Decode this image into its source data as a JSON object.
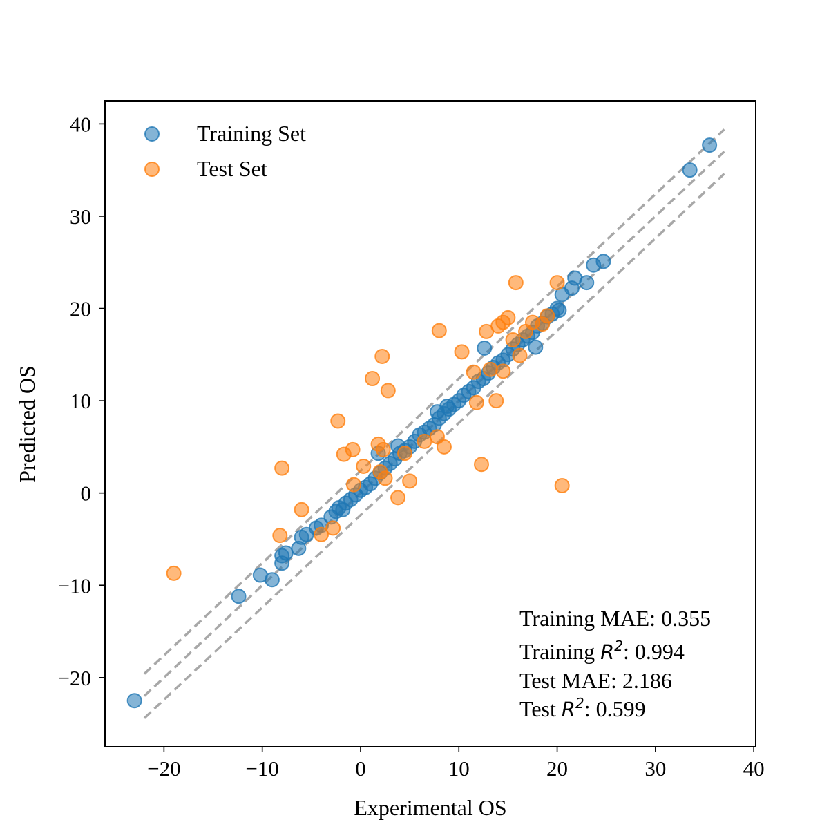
{
  "chart_data": {
    "type": "scatter",
    "xlabel": "Experimental OS",
    "ylabel": "Predicted OS",
    "xlim": [
      -26,
      40.2
    ],
    "ylim": [
      -27.5,
      42.5
    ],
    "xticks": [
      -20,
      -10,
      0,
      10,
      20,
      30,
      40
    ],
    "yticks": [
      -20,
      -10,
      0,
      10,
      20,
      30,
      40
    ],
    "xtick_labels": [
      "−20",
      "−10",
      "0",
      "10",
      "20",
      "30",
      "40"
    ],
    "ytick_labels": [
      "−20",
      "−10",
      "0",
      "10",
      "20",
      "30",
      "40"
    ],
    "grid": false,
    "legend_placement": "top-left",
    "reference_lines": {
      "x_range": [
        -22,
        37
      ],
      "offsets": [
        2.4,
        0,
        -2.4
      ],
      "color": "#999999",
      "style": "dashed"
    },
    "series": [
      {
        "name": "Training Set",
        "color": "#1f77b4",
        "points": [
          [
            -23,
            -22.5
          ],
          [
            -12.4,
            -11.2
          ],
          [
            -10.2,
            -8.9
          ],
          [
            -9,
            -9.4
          ],
          [
            -8,
            -7.6
          ],
          [
            -8,
            -6.8
          ],
          [
            -7.6,
            -6.5
          ],
          [
            -6.3,
            -6
          ],
          [
            -6,
            -4.8
          ],
          [
            -5.5,
            -4.5
          ],
          [
            -4.5,
            -3.8
          ],
          [
            -4,
            -3.5
          ],
          [
            -3,
            -2.6
          ],
          [
            -2.5,
            -2
          ],
          [
            -2.2,
            -1.6
          ],
          [
            -1.8,
            -1.8
          ],
          [
            -1.5,
            -1.1
          ],
          [
            -1,
            -0.7
          ],
          [
            -0.5,
            -0.2
          ],
          [
            0,
            0.3
          ],
          [
            0.5,
            0.6
          ],
          [
            1,
            1
          ],
          [
            1.5,
            1.6
          ],
          [
            1.8,
            4.3
          ],
          [
            2,
            2.2
          ],
          [
            2.5,
            2.7
          ],
          [
            3,
            3.2
          ],
          [
            3.5,
            3.7
          ],
          [
            3.8,
            5.1
          ],
          [
            4,
            4.3
          ],
          [
            4.5,
            4.6
          ],
          [
            5,
            5
          ],
          [
            5.5,
            5.6
          ],
          [
            6,
            6.3
          ],
          [
            6.5,
            6.6
          ],
          [
            7,
            7
          ],
          [
            7.5,
            7.4
          ],
          [
            7.8,
            8.8
          ],
          [
            8,
            8.1
          ],
          [
            8.5,
            8.6
          ],
          [
            8.8,
            9.4
          ],
          [
            9,
            9.1
          ],
          [
            9.5,
            9.6
          ],
          [
            10,
            10
          ],
          [
            10.5,
            10.6
          ],
          [
            11,
            11
          ],
          [
            11.5,
            11.4
          ],
          [
            12,
            12.1
          ],
          [
            12.5,
            12.4
          ],
          [
            12.6,
            15.7
          ],
          [
            13,
            13
          ],
          [
            13.5,
            13.6
          ],
          [
            14,
            14.1
          ],
          [
            14.5,
            14.4
          ],
          [
            15,
            15
          ],
          [
            15.5,
            15.6
          ],
          [
            16,
            16.1
          ],
          [
            16.5,
            16.6
          ],
          [
            17,
            17
          ],
          [
            17.5,
            17.4
          ],
          [
            17.8,
            15.8
          ],
          [
            18,
            18.1
          ],
          [
            18.5,
            18.4
          ],
          [
            19,
            19.1
          ],
          [
            19.5,
            19.4
          ],
          [
            20,
            20
          ],
          [
            20.2,
            19.8
          ],
          [
            20.5,
            21.5
          ],
          [
            21.5,
            22.2
          ],
          [
            21.8,
            23.3
          ],
          [
            23,
            22.8
          ],
          [
            23.7,
            24.7
          ],
          [
            24.7,
            25.1
          ],
          [
            33.5,
            35
          ],
          [
            35.5,
            37.7
          ]
        ]
      },
      {
        "name": "Test Set",
        "color": "#ff7f0e",
        "points": [
          [
            -19,
            -8.7
          ],
          [
            -8.2,
            -4.6
          ],
          [
            -8,
            2.7
          ],
          [
            -6,
            -1.8
          ],
          [
            -4,
            -4.5
          ],
          [
            -2.8,
            -3.8
          ],
          [
            -2.3,
            7.8
          ],
          [
            -1.7,
            4.2
          ],
          [
            -0.8,
            4.7
          ],
          [
            -0.7,
            0.9
          ],
          [
            0.3,
            2.9
          ],
          [
            1.2,
            12.4
          ],
          [
            1.8,
            5.3
          ],
          [
            2,
            2.3
          ],
          [
            2.2,
            14.8
          ],
          [
            2.3,
            4.7
          ],
          [
            2.5,
            1.6
          ],
          [
            2.8,
            11.1
          ],
          [
            3.8,
            -0.5
          ],
          [
            4.5,
            4.3
          ],
          [
            5,
            1.3
          ],
          [
            6.5,
            5.6
          ],
          [
            7.8,
            6.1
          ],
          [
            8,
            17.6
          ],
          [
            8.5,
            5
          ],
          [
            10.3,
            15.3
          ],
          [
            11.5,
            13.1
          ],
          [
            11.8,
            9.8
          ],
          [
            12.3,
            3.1
          ],
          [
            12.8,
            17.5
          ],
          [
            13.2,
            13.4
          ],
          [
            13.8,
            10
          ],
          [
            14,
            18.1
          ],
          [
            14.5,
            18.5
          ],
          [
            14.5,
            13.2
          ],
          [
            15,
            19
          ],
          [
            15.5,
            16.6
          ],
          [
            15.8,
            22.8
          ],
          [
            16.2,
            14.9
          ],
          [
            16.8,
            17.5
          ],
          [
            17.5,
            18.5
          ],
          [
            18.5,
            18.3
          ],
          [
            19,
            19.2
          ],
          [
            20,
            22.8
          ],
          [
            20.5,
            0.8
          ]
        ]
      }
    ],
    "annotations": [
      {
        "prefix": "Training MAE: 0.355",
        "math": "",
        "suffix": ""
      },
      {
        "prefix": "Training ",
        "math": "R",
        "sup": "2",
        "suffix": ": 0.994"
      },
      {
        "prefix": "Test MAE: 2.186",
        "math": "",
        "suffix": ""
      },
      {
        "prefix": "Test ",
        "math": "R",
        "sup": "2",
        "suffix": ": 0.599"
      }
    ]
  }
}
